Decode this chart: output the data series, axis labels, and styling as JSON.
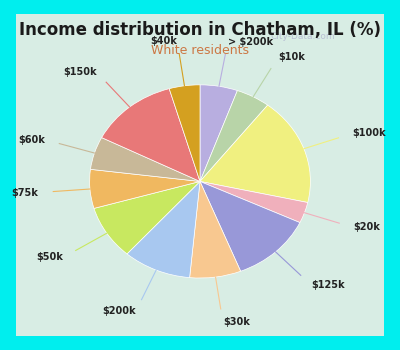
{
  "title": "Income distribution in Chatham, IL (%)",
  "subtitle": "White residents",
  "title_color": "#1a1a1a",
  "subtitle_color": "#cc7744",
  "bg_cyan": "#00eeee",
  "bg_chart": "#ddf0e8",
  "watermark": "City-Data.com",
  "labels": [
    "> $200k",
    "$10k",
    "$100k",
    "$20k",
    "$125k",
    "$30k",
    "$200k",
    "$50k",
    "$75k",
    "$60k",
    "$150k",
    "$40k"
  ],
  "values": [
    5.5,
    5.0,
    18.0,
    3.5,
    12.0,
    7.5,
    10.0,
    9.0,
    6.5,
    5.5,
    13.0,
    4.5
  ],
  "colors": [
    "#b8aee0",
    "#b8d4a8",
    "#f0f080",
    "#f0b0bc",
    "#9898d8",
    "#f8c890",
    "#a8c8f0",
    "#c8e860",
    "#f0b860",
    "#c8b898",
    "#e87878",
    "#d4a020"
  ],
  "line_colors": [
    "#b8aee0",
    "#b8d4a8",
    "#f0f080",
    "#f0b0bc",
    "#9898d8",
    "#f8c890",
    "#a8c8f0",
    "#c8e860",
    "#f0b860",
    "#c8b898",
    "#e87878",
    "#d4a020"
  ],
  "startangle": 90,
  "title_fontsize": 12,
  "subtitle_fontsize": 9
}
